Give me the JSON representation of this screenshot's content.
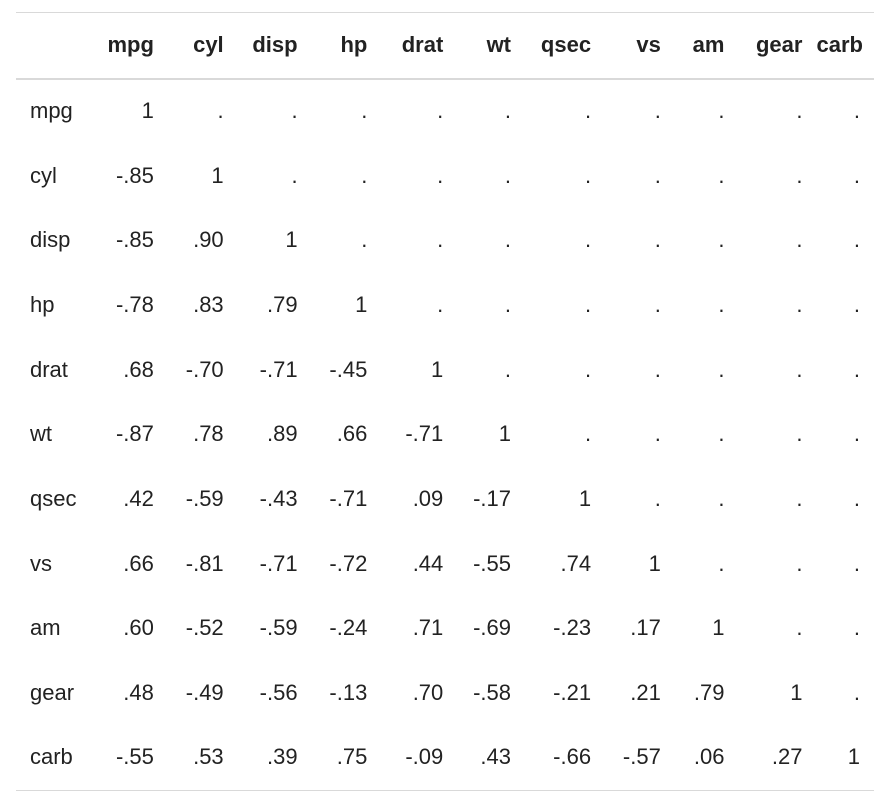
{
  "chart_data": {
    "type": "table",
    "columns": [
      "mpg",
      "cyl",
      "disp",
      "hp",
      "drat",
      "wt",
      "qsec",
      "vs",
      "am",
      "gear",
      "carb"
    ],
    "rows": [
      {
        "label": "mpg",
        "cells": [
          "1",
          ".",
          ".",
          ".",
          ".",
          ".",
          ".",
          ".",
          ".",
          ".",
          "."
        ]
      },
      {
        "label": "cyl",
        "cells": [
          "-.85",
          "1",
          ".",
          ".",
          ".",
          ".",
          ".",
          ".",
          ".",
          ".",
          "."
        ]
      },
      {
        "label": "disp",
        "cells": [
          "-.85",
          ".90",
          "1",
          ".",
          ".",
          ".",
          ".",
          ".",
          ".",
          ".",
          "."
        ]
      },
      {
        "label": "hp",
        "cells": [
          "-.78",
          ".83",
          ".79",
          "1",
          ".",
          ".",
          ".",
          ".",
          ".",
          ".",
          "."
        ]
      },
      {
        "label": "drat",
        "cells": [
          ".68",
          "-.70",
          "-.71",
          "-.45",
          "1",
          ".",
          ".",
          ".",
          ".",
          ".",
          "."
        ]
      },
      {
        "label": "wt",
        "cells": [
          "-.87",
          ".78",
          ".89",
          ".66",
          "-.71",
          "1",
          ".",
          ".",
          ".",
          ".",
          "."
        ]
      },
      {
        "label": "qsec",
        "cells": [
          ".42",
          "-.59",
          "-.43",
          "-.71",
          ".09",
          "-.17",
          "1",
          ".",
          ".",
          ".",
          "."
        ]
      },
      {
        "label": "vs",
        "cells": [
          ".66",
          "-.81",
          "-.71",
          "-.72",
          ".44",
          "-.55",
          ".74",
          "1",
          ".",
          ".",
          "."
        ]
      },
      {
        "label": "am",
        "cells": [
          ".60",
          "-.52",
          "-.59",
          "-.24",
          ".71",
          "-.69",
          "-.23",
          ".17",
          "1",
          ".",
          "."
        ]
      },
      {
        "label": "gear",
        "cells": [
          ".48",
          "-.49",
          "-.56",
          "-.13",
          ".70",
          "-.58",
          "-.21",
          ".21",
          ".79",
          "1",
          "."
        ]
      },
      {
        "label": "carb",
        "cells": [
          "-.55",
          ".53",
          ".39",
          ".75",
          "-.09",
          ".43",
          "-.66",
          "-.57",
          ".06",
          ".27",
          "1"
        ]
      }
    ]
  },
  "colors": {
    "text": "#222222",
    "rule": "#d9d9d9",
    "background": "#ffffff"
  }
}
